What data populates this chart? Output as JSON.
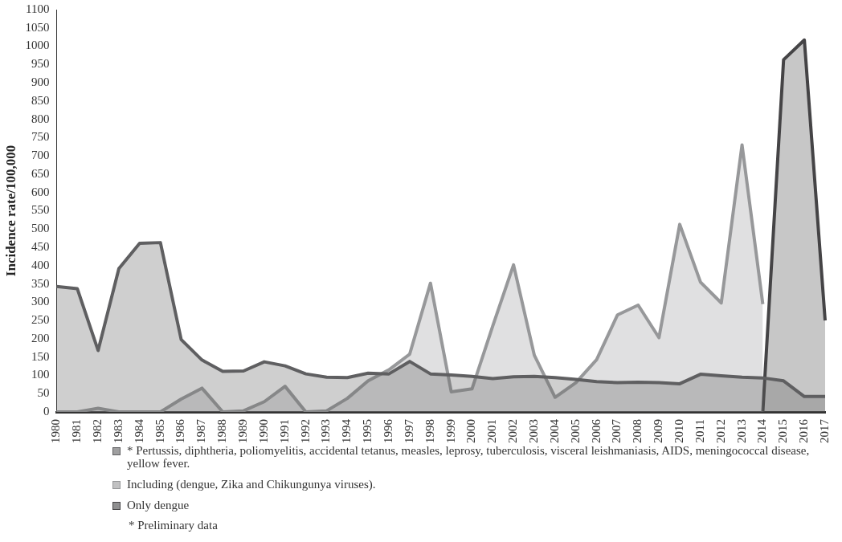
{
  "chart_data": {
    "type": "area",
    "ylabel": "Incidence rate/100,000",
    "categories": [
      "1980",
      "1981",
      "1982",
      "1983",
      "1984",
      "1985",
      "1986",
      "1987",
      "1988",
      "1989",
      "1990",
      "1991",
      "1992",
      "1993",
      "1994",
      "1995",
      "1996",
      "1997",
      "1998",
      "1999",
      "2000",
      "2001",
      "2002",
      "2003",
      "2004",
      "2005",
      "2006",
      "2007",
      "2008",
      "2009",
      "2010",
      "2011",
      "2012",
      "2013",
      "2014",
      "2015",
      "2016",
      "2017"
    ],
    "series": [
      {
        "name": "* Pertussis, diphtheria, poliomyelitis, accidental tetanus, measles, leprosy, tuberculosis, visceral leishmaniasis, AIDS, meningococcal disease, yellow fever.",
        "color": "#5f5f61",
        "values": [
          343,
          337,
          168,
          392,
          461,
          463,
          198,
          142,
          111,
          112,
          137,
          126,
          104,
          95,
          94,
          106,
          104,
          138,
          104,
          101,
          97,
          91,
          96,
          97,
          94,
          89,
          83,
          80,
          81,
          80,
          77,
          103,
          99,
          95,
          93,
          85,
          42,
          42
        ]
      },
      {
        "name": "Including (dengue, Zika and Chikungunya viruses).",
        "color": "#97989a",
        "values": [
          0,
          0,
          10,
          0,
          0,
          0,
          35,
          65,
          0,
          3,
          28,
          70,
          0,
          3,
          37,
          85,
          115,
          158,
          352,
          55,
          63,
          235,
          402,
          155,
          40,
          80,
          143,
          265,
          292,
          203,
          513,
          355,
          298,
          730,
          295,
          null,
          null,
          null
        ]
      },
      {
        "name": "Only dengue",
        "color": "#454446",
        "values": [
          null,
          null,
          null,
          null,
          null,
          null,
          null,
          null,
          null,
          null,
          null,
          null,
          null,
          null,
          null,
          null,
          null,
          null,
          null,
          null,
          null,
          null,
          null,
          null,
          null,
          null,
          null,
          null,
          null,
          null,
          null,
          null,
          null,
          null,
          0,
          963,
          1017,
          250
        ]
      }
    ],
    "ylim": [
      0,
      1100
    ],
    "yticks": [
      0,
      50,
      100,
      150,
      200,
      250,
      300,
      350,
      400,
      450,
      500,
      550,
      600,
      650,
      700,
      750,
      800,
      850,
      900,
      950,
      1000,
      1050,
      1100
    ],
    "grid": false,
    "legend": "bottom left",
    "annotations": [
      "* Preliminary data"
    ]
  }
}
